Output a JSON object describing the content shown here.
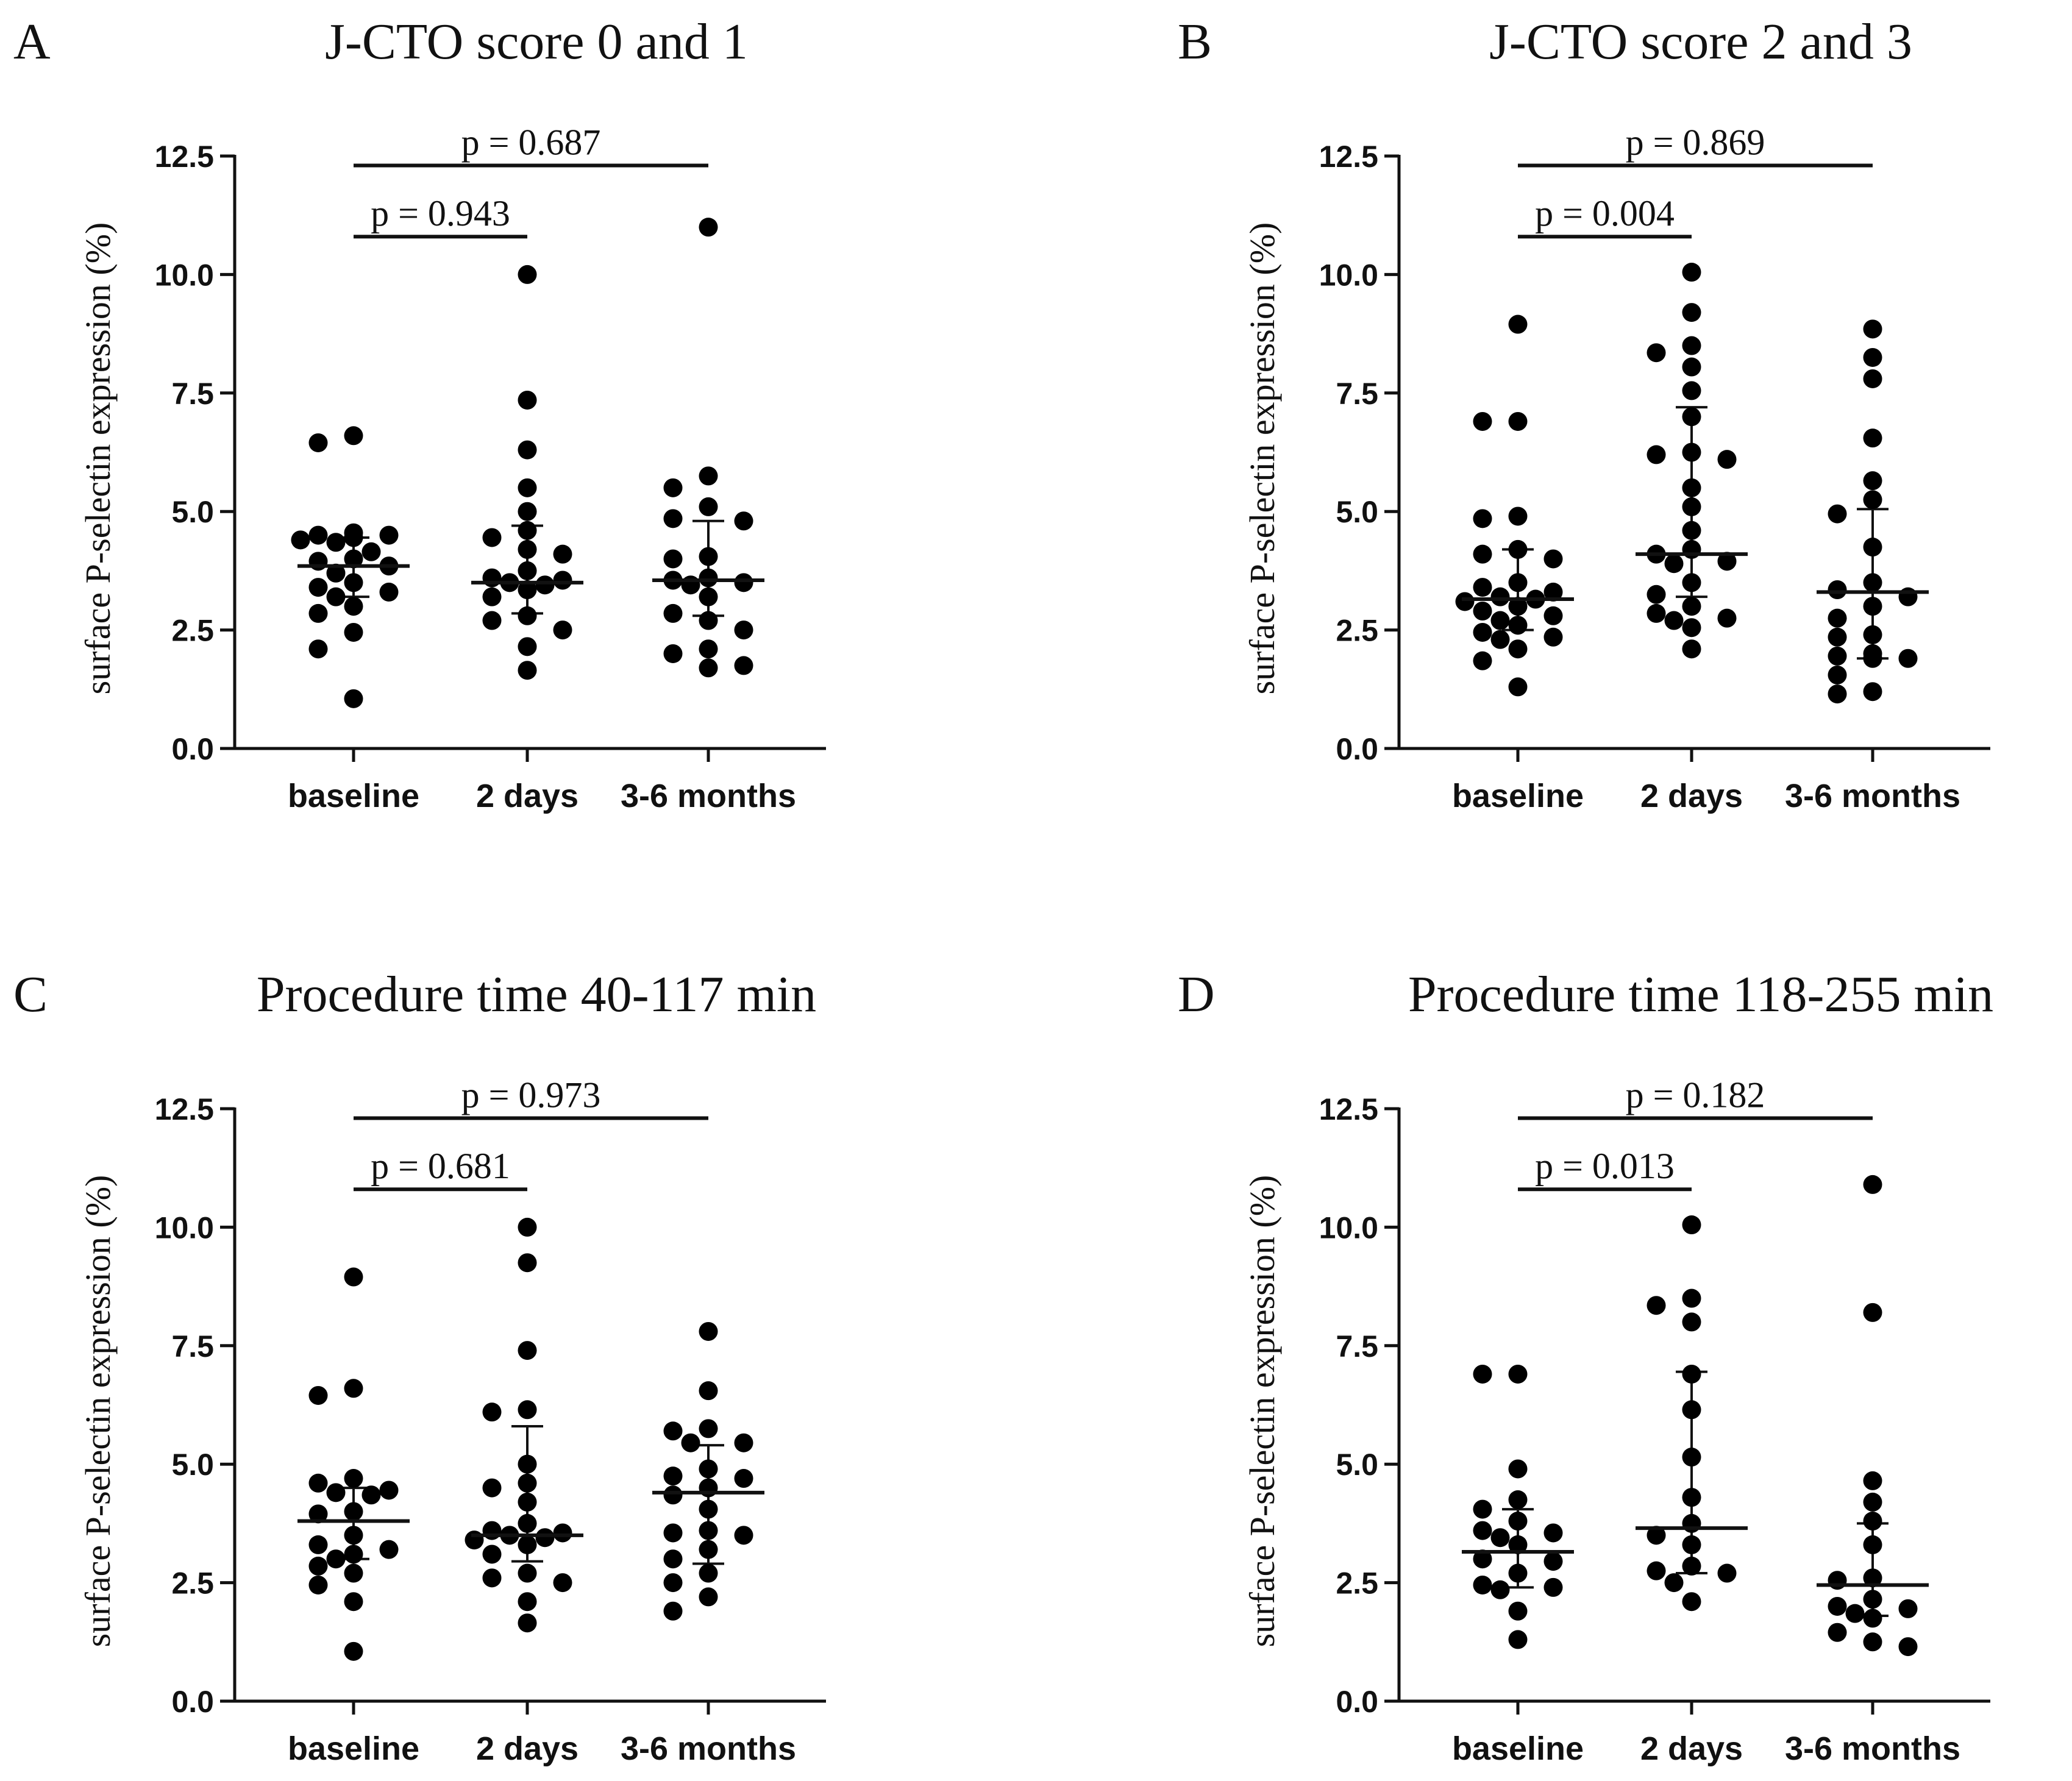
{
  "chart_data": [
    {
      "type": "scatter",
      "panel": "A",
      "title": "J-CTO score 0 and 1",
      "ylabel": "surface P-selectin expression (%)",
      "ylim": [
        0,
        12.5
      ],
      "yticks": [
        "0.0",
        "2.5",
        "5.0",
        "7.5",
        "10.0",
        "12.5"
      ],
      "categories": [
        "baseline",
        "2 days",
        "3-6 months"
      ],
      "series": [
        {
          "name": "baseline",
          "values": [
            6.6,
            6.45,
            4.55,
            4.5,
            4.5,
            4.45,
            4.4,
            4.35,
            4.15,
            4.0,
            3.95,
            3.85,
            3.7,
            3.5,
            3.4,
            3.3,
            3.2,
            3.0,
            2.85,
            2.45,
            2.1,
            1.05
          ],
          "median": 3.85,
          "q1": 3.2,
          "q3": 4.45
        },
        {
          "name": "2 days",
          "values": [
            10.0,
            7.35,
            6.3,
            5.5,
            5.0,
            4.6,
            4.45,
            4.2,
            4.1,
            3.75,
            3.6,
            3.55,
            3.5,
            3.45,
            3.35,
            3.2,
            2.8,
            2.7,
            2.5,
            2.15,
            1.65
          ],
          "median": 3.5,
          "q1": 2.85,
          "q3": 4.7
        },
        {
          "name": "3-6 months",
          "values": [
            11.0,
            5.75,
            5.5,
            5.1,
            4.85,
            4.8,
            4.05,
            4.0,
            3.6,
            3.55,
            3.5,
            3.45,
            3.2,
            2.85,
            2.7,
            2.5,
            2.1,
            2.0,
            1.75,
            1.7
          ],
          "median": 3.55,
          "q1": 2.8,
          "q3": 4.8
        }
      ],
      "comparisons": [
        {
          "pair": [
            "baseline",
            "2 days"
          ],
          "label": "p = 0.943",
          "y": 10.8
        },
        {
          "pair": [
            "baseline",
            "3-6 months"
          ],
          "label": "p = 0.687",
          "y": 12.3
        }
      ]
    },
    {
      "type": "scatter",
      "panel": "B",
      "title": "J-CTO score 2 and 3",
      "ylabel": "surface P-selectin expression (%)",
      "ylim": [
        0,
        12.5
      ],
      "yticks": [
        "0.0",
        "2.5",
        "5.0",
        "7.5",
        "10.0",
        "12.5"
      ],
      "categories": [
        "baseline",
        "2 days",
        "3-6 months"
      ],
      "series": [
        {
          "name": "baseline",
          "values": [
            8.95,
            6.9,
            6.9,
            4.9,
            4.85,
            4.2,
            4.1,
            4.0,
            3.5,
            3.4,
            3.3,
            3.2,
            3.15,
            3.1,
            3.0,
            2.9,
            2.8,
            2.7,
            2.6,
            2.45,
            2.35,
            2.3,
            2.1,
            1.85,
            1.3
          ],
          "median": 3.15,
          "q1": 2.5,
          "q3": 4.2
        },
        {
          "name": "2 days",
          "values": [
            10.05,
            9.2,
            8.5,
            8.35,
            8.05,
            7.55,
            7.0,
            6.25,
            6.2,
            6.1,
            5.5,
            5.1,
            4.6,
            4.2,
            4.1,
            3.95,
            3.9,
            3.5,
            3.25,
            3.0,
            2.85,
            2.75,
            2.7,
            2.55,
            2.1
          ],
          "median": 4.1,
          "q1": 3.2,
          "q3": 7.2
        },
        {
          "name": "3-6 months",
          "values": [
            8.85,
            8.25,
            7.8,
            6.55,
            5.65,
            5.25,
            4.95,
            4.25,
            3.5,
            3.35,
            3.2,
            3.0,
            2.75,
            2.4,
            2.35,
            2.0,
            1.95,
            1.9,
            1.9,
            1.55,
            1.2,
            1.15
          ],
          "median": 3.3,
          "q1": 1.9,
          "q3": 5.05
        }
      ],
      "comparisons": [
        {
          "pair": [
            "baseline",
            "2 days"
          ],
          "label": "p = 0.004",
          "y": 10.8
        },
        {
          "pair": [
            "baseline",
            "3-6 months"
          ],
          "label": "p = 0.869",
          "y": 12.3
        }
      ]
    },
    {
      "type": "scatter",
      "panel": "C",
      "title": "Procedure time 40-117 min",
      "ylabel": "surface P-selectin expression (%)",
      "ylim": [
        0,
        12.5
      ],
      "yticks": [
        "0.0",
        "2.5",
        "5.0",
        "7.5",
        "10.0",
        "12.5"
      ],
      "categories": [
        "baseline",
        "2 days",
        "3-6 months"
      ],
      "series": [
        {
          "name": "baseline",
          "values": [
            8.95,
            6.6,
            6.45,
            4.7,
            4.6,
            4.45,
            4.4,
            4.35,
            4.0,
            3.95,
            3.5,
            3.3,
            3.2,
            3.1,
            3.0,
            2.85,
            2.7,
            2.45,
            2.1,
            1.05
          ],
          "median": 3.8,
          "q1": 3.0,
          "q3": 4.5
        },
        {
          "name": "2 days",
          "values": [
            10.0,
            9.25,
            7.4,
            6.15,
            6.1,
            5.0,
            4.6,
            4.5,
            4.2,
            3.75,
            3.6,
            3.55,
            3.5,
            3.45,
            3.4,
            3.3,
            3.1,
            2.7,
            2.6,
            2.5,
            2.1,
            1.65
          ],
          "median": 3.5,
          "q1": 2.95,
          "q3": 5.8
        },
        {
          "name": "3-6 months",
          "values": [
            7.8,
            6.55,
            5.75,
            5.7,
            5.45,
            5.45,
            4.9,
            4.75,
            4.7,
            4.5,
            4.35,
            4.05,
            3.6,
            3.55,
            3.5,
            3.2,
            3.0,
            2.7,
            2.5,
            2.2,
            1.9
          ],
          "median": 4.4,
          "q1": 2.9,
          "q3": 5.4
        }
      ],
      "comparisons": [
        {
          "pair": [
            "baseline",
            "2 days"
          ],
          "label": "p = 0.681",
          "y": 10.8
        },
        {
          "pair": [
            "baseline",
            "3-6 months"
          ],
          "label": "p = 0.973",
          "y": 12.3
        }
      ]
    },
    {
      "type": "scatter",
      "panel": "D",
      "title": "Procedure time 118-255 min",
      "ylabel": "surface P-selectin expression (%)",
      "ylim": [
        0,
        12.5
      ],
      "yticks": [
        "0.0",
        "2.5",
        "5.0",
        "7.5",
        "10.0",
        "12.5"
      ],
      "categories": [
        "baseline",
        "2 days",
        "3-6 months"
      ],
      "series": [
        {
          "name": "baseline",
          "values": [
            6.9,
            6.9,
            4.9,
            4.25,
            4.05,
            3.8,
            3.6,
            3.55,
            3.45,
            3.3,
            3.0,
            2.95,
            2.7,
            2.45,
            2.4,
            2.35,
            1.9,
            1.3
          ],
          "median": 3.15,
          "q1": 2.4,
          "q3": 4.05
        },
        {
          "name": "2 days",
          "values": [
            10.05,
            8.5,
            8.35,
            8.0,
            6.9,
            6.15,
            5.15,
            4.3,
            3.75,
            3.5,
            3.3,
            2.85,
            2.75,
            2.7,
            2.5,
            2.1
          ],
          "median": 3.65,
          "q1": 2.7,
          "q3": 6.95
        },
        {
          "name": "3-6 months",
          "values": [
            10.9,
            8.2,
            4.65,
            4.2,
            3.8,
            3.3,
            2.6,
            2.55,
            2.15,
            2.0,
            1.95,
            1.85,
            1.75,
            1.45,
            1.25,
            1.15
          ],
          "median": 2.45,
          "q1": 1.8,
          "q3": 3.75
        }
      ],
      "comparisons": [
        {
          "pair": [
            "baseline",
            "2 days"
          ],
          "label": "p = 0.013",
          "y": 10.8
        },
        {
          "pair": [
            "baseline",
            "3-6 months"
          ],
          "label": "p = 0.182",
          "y": 12.3
        }
      ]
    }
  ]
}
